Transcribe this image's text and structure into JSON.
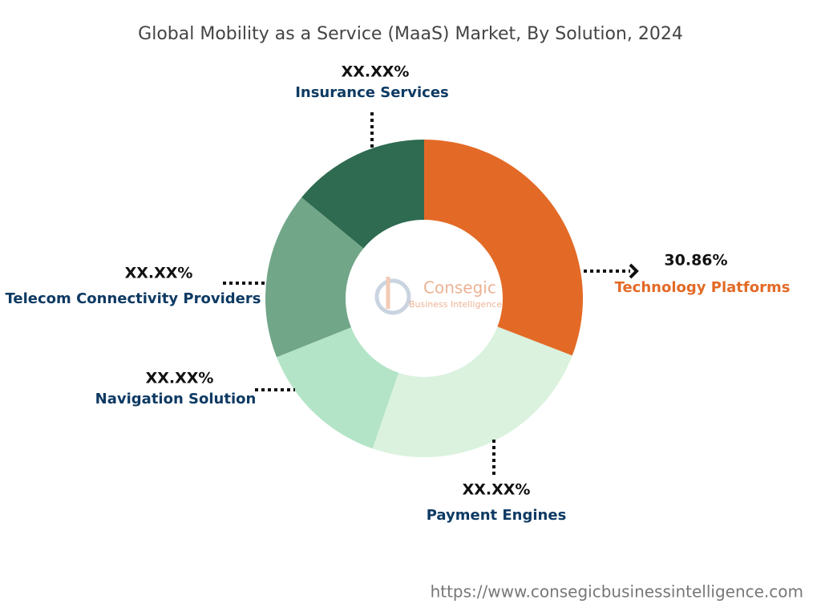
{
  "chart_data": {
    "type": "donut",
    "title": "Global Mobility as a Service (MaaS) Market, By Solution, 2024",
    "categories": [
      "Technology Platforms",
      "Payment Engines",
      "Navigation Solution",
      "Telecom Connectivity Providers",
      "Insurance Services"
    ],
    "values": [
      30.86,
      24.4,
      13.7,
      17.0,
      14.04
    ],
    "value_labels": [
      "30.86%",
      "XX.XX%",
      "XX.XX%",
      "XX.XX%",
      "XX.XX%"
    ],
    "colors": [
      "#e36a26",
      "#daf2de",
      "#b4e4c7",
      "#71a688",
      "#2e6b50"
    ],
    "watermark": "Consegic",
    "watermark_subtitle": "Business Intelligence",
    "source": "https://www.consegicbusinessintelligence.com"
  }
}
